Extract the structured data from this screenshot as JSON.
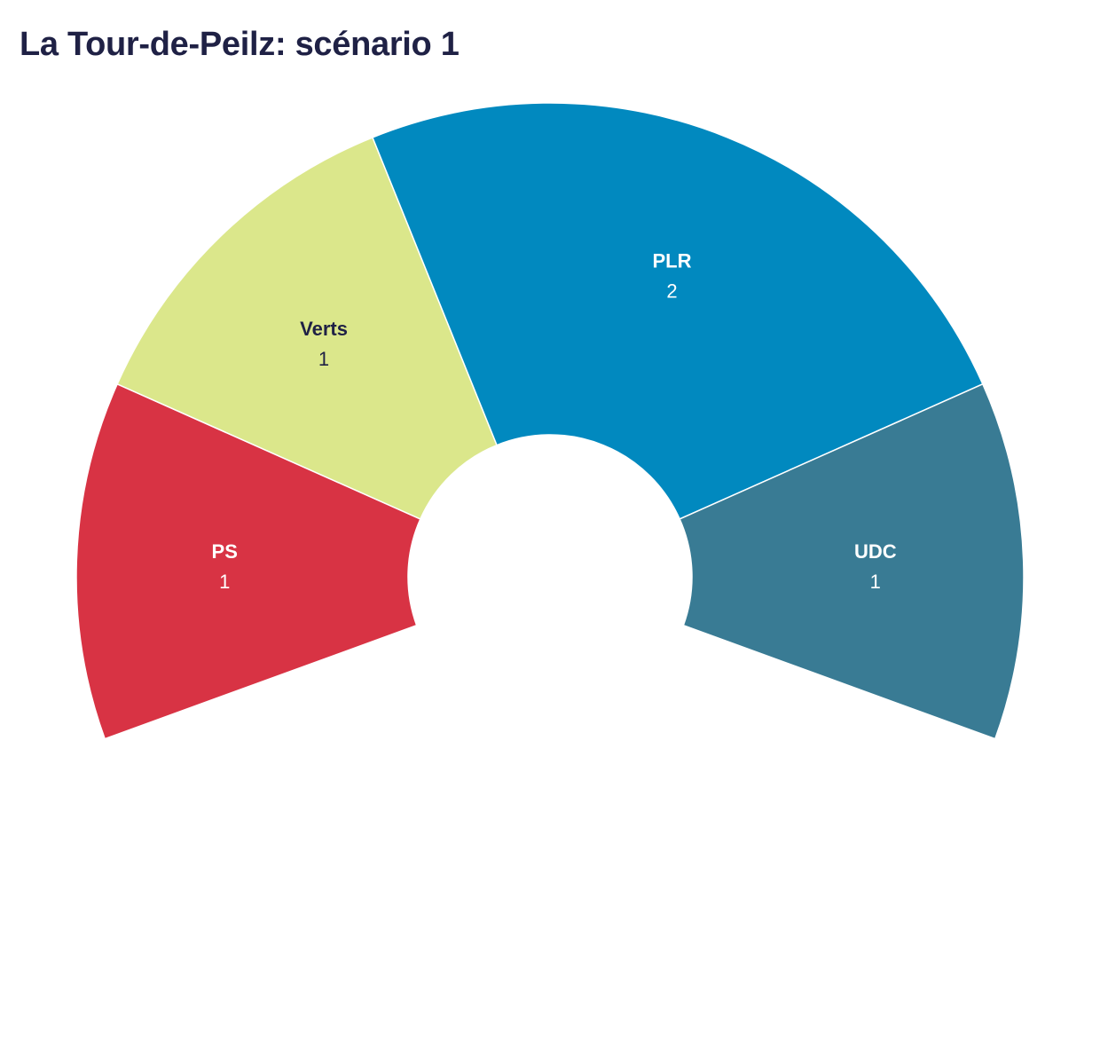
{
  "chart_data": {
    "type": "pie",
    "variant": "semicircle-donut",
    "title": "La Tour-de-Peilz: scénario 1",
    "categories": [
      "PS",
      "Verts",
      "PLR",
      "UDC"
    ],
    "values": [
      1,
      1,
      2,
      1
    ],
    "colors": [
      "#d83344",
      "#dbe78b",
      "#0189bf",
      "#397b94"
    ],
    "label_colors": [
      "#ffffff",
      "#1f2145",
      "#ffffff",
      "#ffffff"
    ],
    "total": 5,
    "legend": "none"
  }
}
